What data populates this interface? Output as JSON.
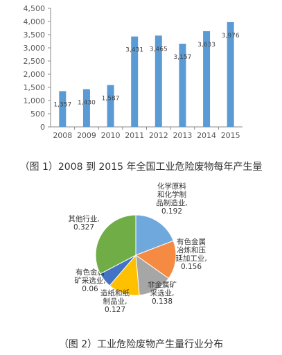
{
  "figure1": {
    "caption": "（图 1）2008 到 2015 年全国工业危险废物每年产生量",
    "chart_data": {
      "type": "bar",
      "categories": [
        "2008",
        "2009",
        "2010",
        "2011",
        "2012",
        "2013",
        "2014",
        "2015"
      ],
      "values": [
        1357,
        1430,
        1587,
        3431,
        3465,
        3157,
        3633,
        3976
      ],
      "value_labels": [
        "1,357",
        "1,430",
        "1,587",
        "3,431",
        "3,465",
        "3,157",
        "3,633",
        "3,976"
      ],
      "ylim": [
        0,
        4500
      ],
      "yticks": [
        0,
        500,
        1000,
        1500,
        2000,
        2500,
        3000,
        3500,
        4000,
        4500
      ],
      "ytick_labels": [
        "0",
        "500",
        "1,000",
        "1,500",
        "2,000",
        "2,500",
        "3,000",
        "3,500",
        "4,000",
        "4,500"
      ],
      "grid": false,
      "bar_color": "#5b9bd5"
    }
  },
  "figure2": {
    "caption": "（图 2）工业危险废物产生量行业分布",
    "chart_data": {
      "type": "pie",
      "slices": [
        {
          "label_lines": [
            "化学原料",
            "和化学制",
            "品制造业,",
            "0.192"
          ],
          "value": 0.192,
          "color": "#6fa8dc"
        },
        {
          "label_lines": [
            "有色金属",
            "冶炼和压",
            "延加工业,",
            "0.156"
          ],
          "value": 0.156,
          "color": "#f58a42"
        },
        {
          "label_lines": [
            "非金属矿",
            "采选业,",
            "0.138"
          ],
          "value": 0.138,
          "color": "#a6a6a6"
        },
        {
          "label_lines": [
            "造纸和纸",
            "制品业,",
            "0.127"
          ],
          "value": 0.127,
          "color": "#ffc000"
        },
        {
          "label_lines": [
            "有色金属",
            "矿采选业,",
            "0.06"
          ],
          "value": 0.06,
          "color": "#4472c4"
        },
        {
          "label_lines": [
            "其他行业,",
            "0.327"
          ],
          "value": 0.327,
          "color": "#70ad47"
        }
      ]
    }
  }
}
